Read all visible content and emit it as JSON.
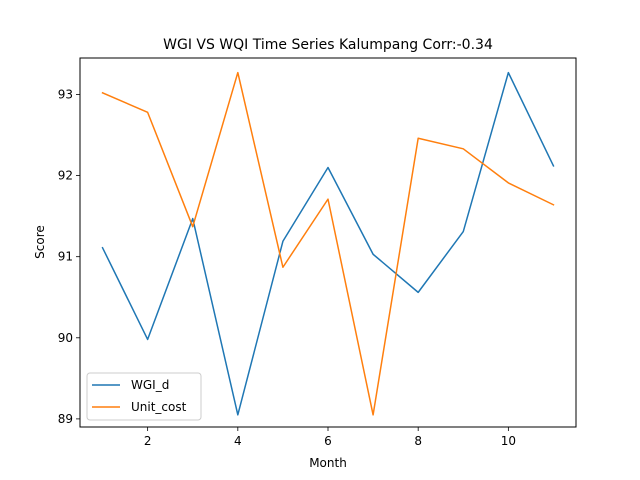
{
  "chart_data": {
    "type": "line",
    "title": "WGI VS WQI Time Series Kalumpang Corr:-0.34",
    "xlabel": "Month",
    "ylabel": "Score",
    "xlim": [
      0.5,
      11.5
    ],
    "ylim": [
      88.9,
      93.45
    ],
    "xticks": [
      2,
      4,
      6,
      8,
      10
    ],
    "yticks": [
      89,
      90,
      91,
      92,
      93
    ],
    "grid": false,
    "legend_position": "lower-left",
    "x": [
      1,
      2,
      3,
      4,
      5,
      6,
      7,
      8,
      9,
      10,
      11
    ],
    "series": [
      {
        "name": "WGI_d",
        "color": "#1f77b4",
        "values": [
          91.11,
          89.98,
          91.47,
          89.05,
          91.19,
          92.1,
          91.03,
          90.56,
          91.31,
          93.27,
          92.12
        ]
      },
      {
        "name": "Unit_cost",
        "color": "#ff7f0e",
        "values": [
          93.02,
          92.78,
          91.37,
          93.27,
          90.87,
          91.71,
          89.05,
          92.46,
          92.33,
          91.91,
          91.64
        ]
      }
    ]
  }
}
